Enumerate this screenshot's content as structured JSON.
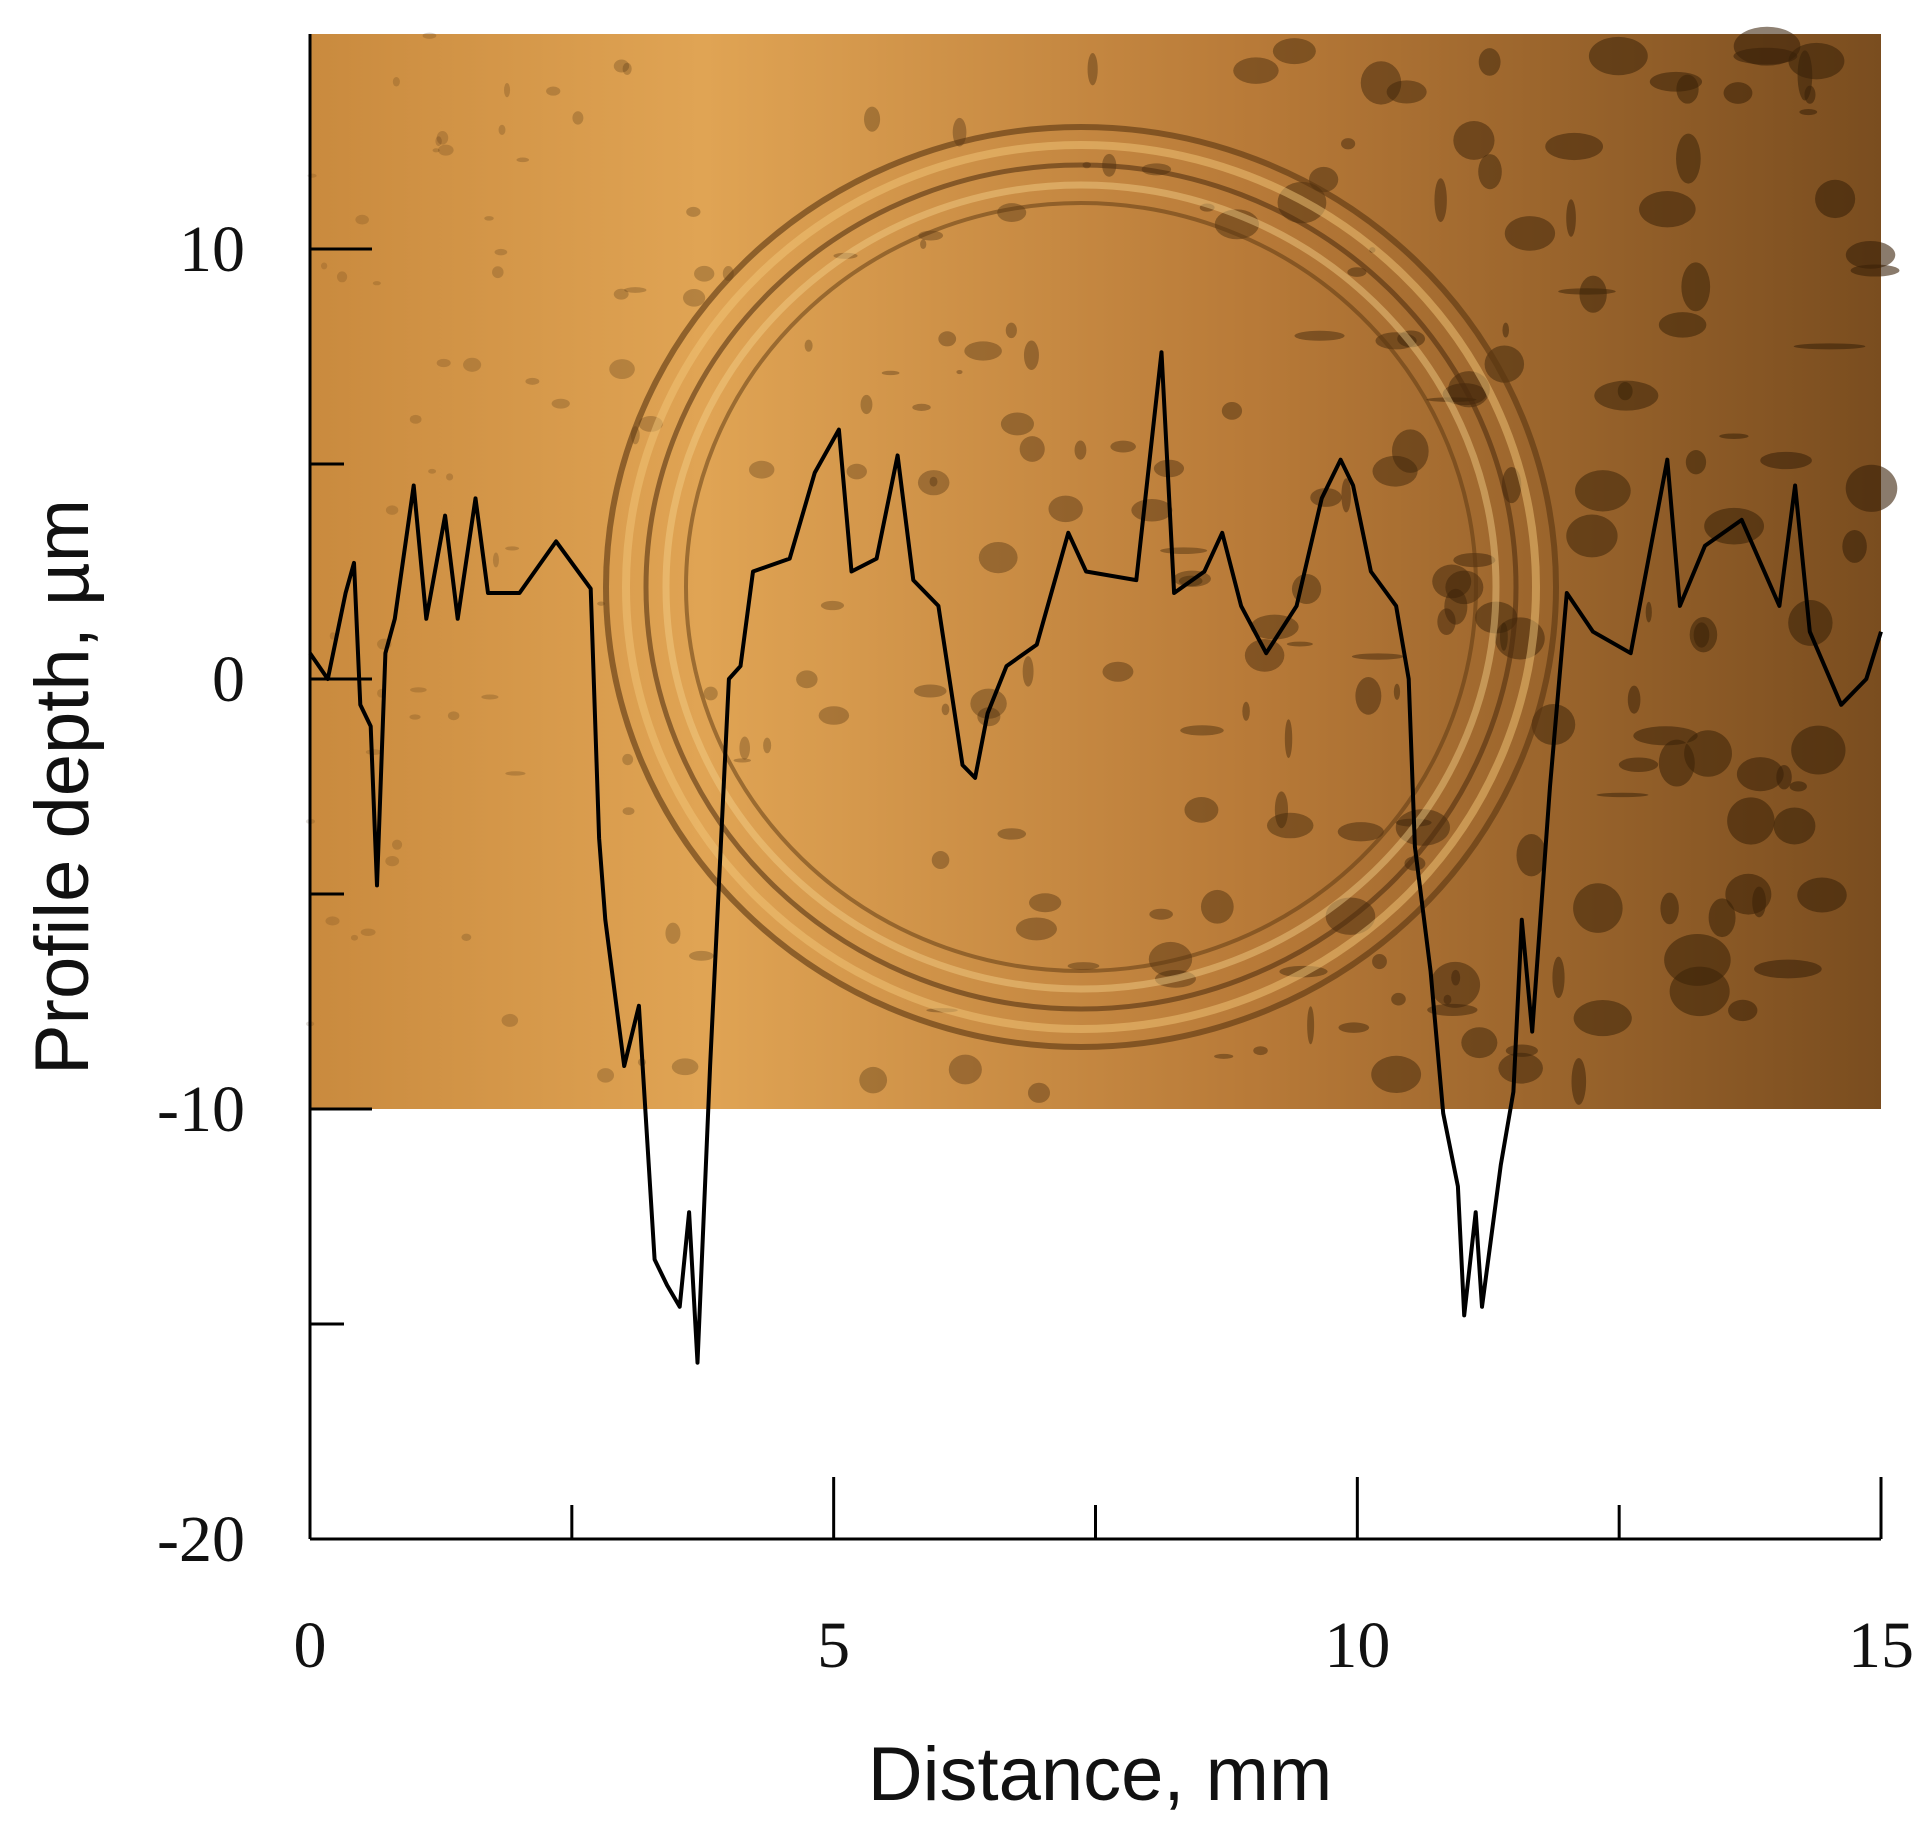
{
  "chart_data": {
    "type": "line",
    "xlabel": "Distance, mm",
    "ylabel": "Profile depth, µm",
    "xlim": [
      0,
      15
    ],
    "ylim": [
      -20,
      15
    ],
    "xticks": [
      0,
      5,
      10,
      15
    ],
    "yticks": [
      -20,
      -10,
      0,
      10
    ],
    "xminorticks": [
      2.5,
      7.5,
      12.5
    ],
    "yminorticks": [
      -15,
      -5,
      5
    ],
    "image_ylim": [
      -10,
      15
    ],
    "series": [
      {
        "color": "#000000",
        "x": [
          0,
          0.17,
          0.34,
          0.42,
          0.48,
          0.58,
          0.64,
          0.72,
          0.81,
          0.99,
          1.11,
          1.29,
          1.41,
          1.58,
          1.7,
          2.0,
          2.35,
          2.68,
          2.76,
          2.82,
          3.0,
          3.14,
          3.29,
          3.41,
          3.53,
          3.62,
          3.7,
          3.82,
          4.0,
          4.11,
          4.23,
          4.58,
          4.82,
          5.05,
          5.17,
          5.41,
          5.61,
          5.76,
          6.0,
          6.23,
          6.35,
          6.47,
          6.65,
          6.94,
          7.24,
          7.41,
          7.89,
          8.13,
          8.25,
          8.54,
          8.71,
          8.89,
          9.13,
          9.42,
          9.66,
          9.84,
          9.96,
          10.13,
          10.37,
          10.49,
          10.55,
          10.7,
          10.82,
          10.96,
          11.02,
          11.13,
          11.19,
          11.37,
          11.49,
          11.57,
          11.67,
          11.84,
          12.0,
          12.25,
          12.61,
          12.96,
          13.08,
          13.32,
          13.67,
          14.03,
          14.18,
          14.32,
          14.62,
          14.86,
          15.0
        ],
        "values": [
          0.6,
          0,
          2.0,
          2.7,
          -0.6,
          -1.1,
          -4.8,
          0.6,
          1.4,
          4.5,
          1.4,
          3.8,
          1.4,
          4.2,
          2.0,
          2.0,
          3.2,
          2.1,
          -3.7,
          -5.6,
          -9.0,
          -7.6,
          -13.5,
          -14.1,
          -14.6,
          -12.4,
          -15.9,
          -9.0,
          0,
          0.3,
          2.5,
          2.8,
          4.8,
          5.8,
          2.5,
          2.8,
          5.2,
          2.3,
          1.7,
          -2.0,
          -2.3,
          -0.8,
          0.3,
          0.8,
          3.4,
          2.5,
          2.3,
          7.6,
          2.0,
          2.5,
          3.4,
          1.7,
          0.6,
          1.7,
          4.2,
          5.1,
          4.5,
          2.5,
          1.7,
          0,
          -3.9,
          -6.8,
          -10.1,
          -11.8,
          -14.8,
          -12.4,
          -14.6,
          -11.3,
          -9.6,
          -5.6,
          -8.2,
          -2.5,
          2.0,
          1.1,
          0.6,
          5.1,
          1.7,
          3.1,
          3.7,
          1.7,
          4.5,
          1.1,
          -0.6,
          0,
          1.1
        ]
      }
    ]
  }
}
